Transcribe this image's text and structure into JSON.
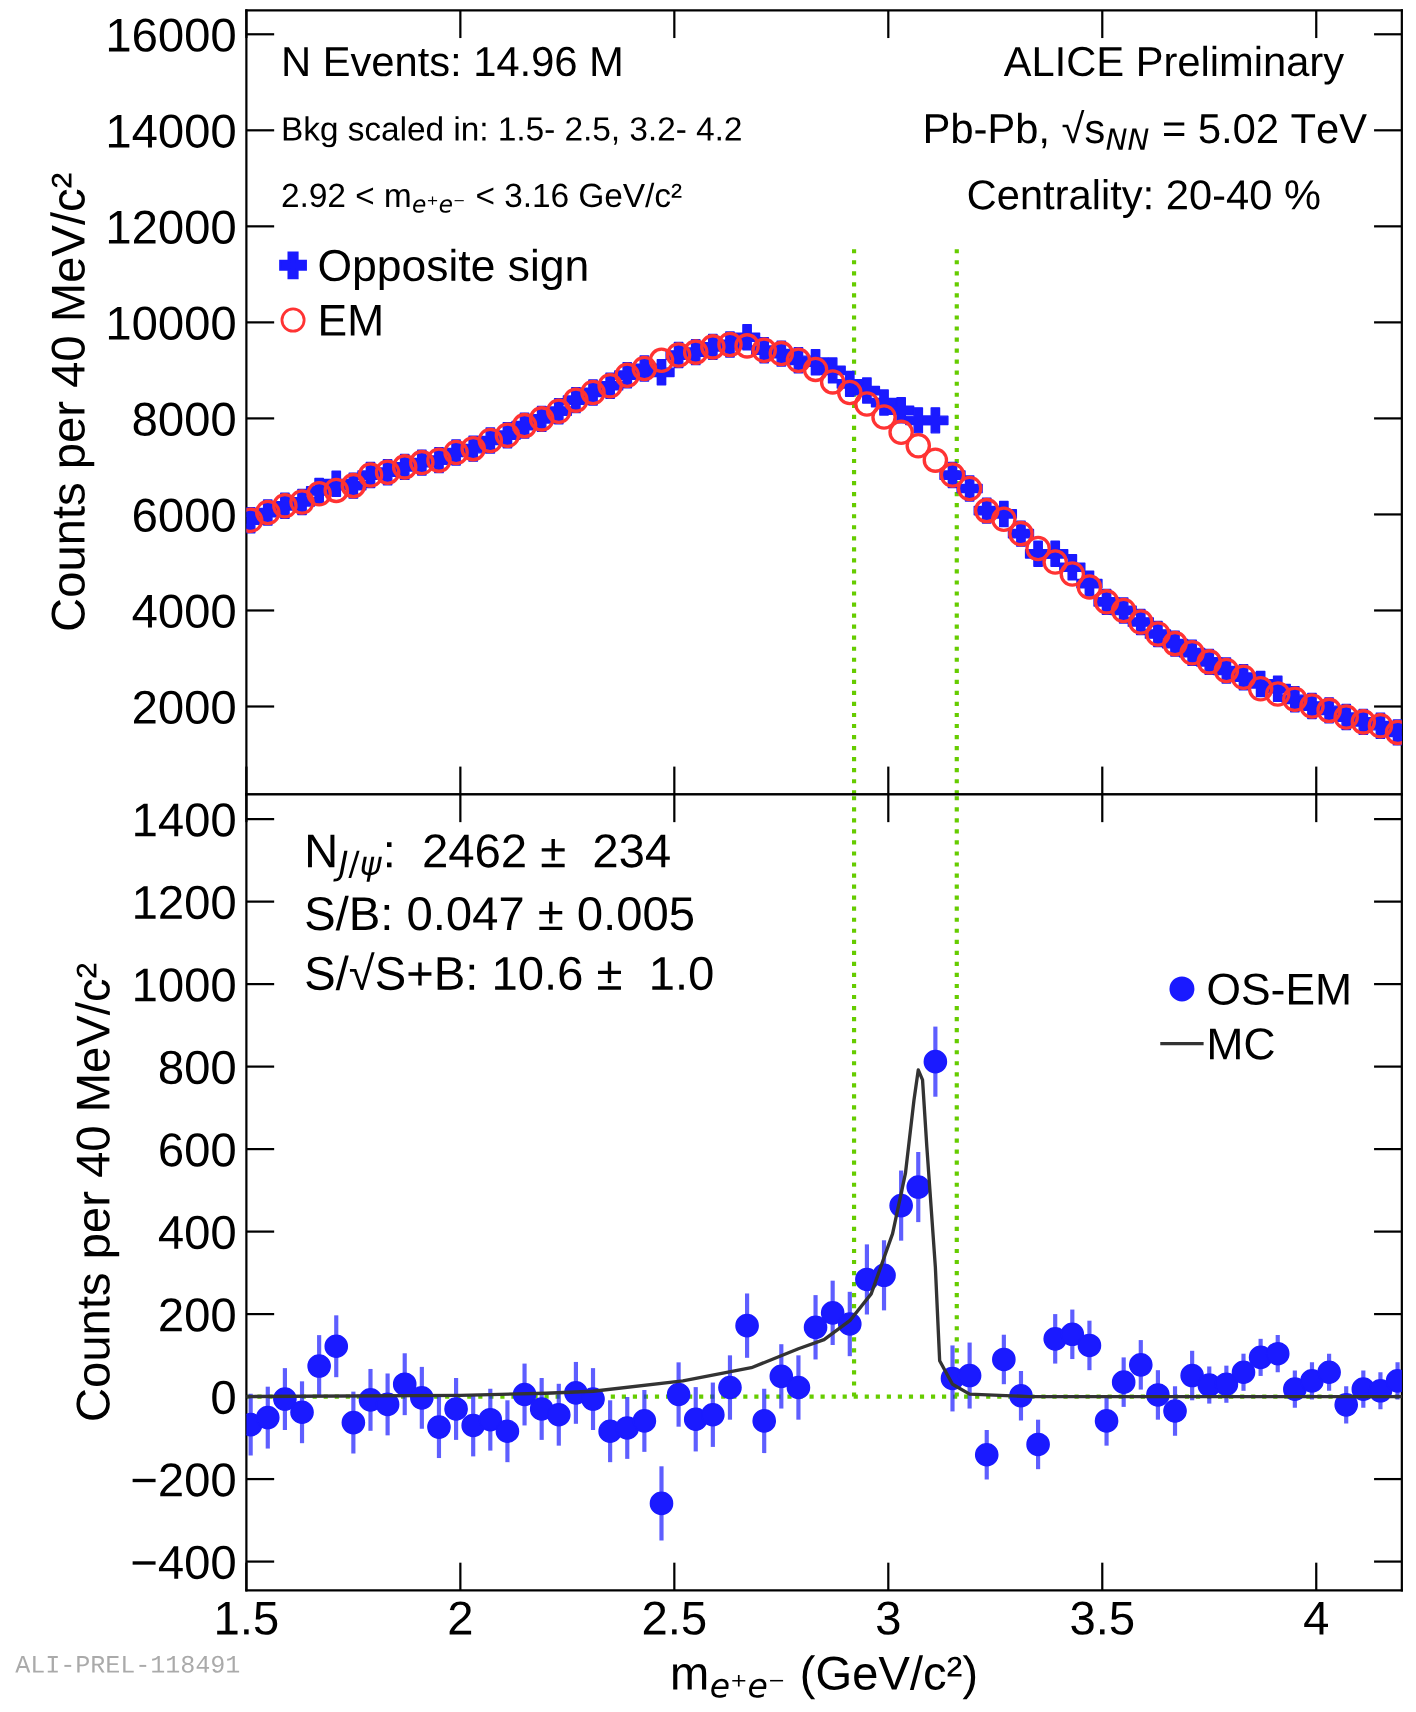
{
  "chart_data": [
    {
      "type": "scatter",
      "ylabel": "Counts per 40 MeV/c²",
      "xlim": [
        1.5,
        4.2
      ],
      "xticks": [
        1.5,
        2,
        2.5,
        3,
        3.5,
        4
      ],
      "ylim": [
        170,
        16500
      ],
      "yticks": [
        2000,
        4000,
        6000,
        8000,
        10000,
        12000,
        14000,
        16000
      ],
      "tick_labels": "y",
      "grid": false,
      "legend": "top left",
      "x": [
        1.51,
        1.55,
        1.59,
        1.63,
        1.67,
        1.71,
        1.75,
        1.79,
        1.83,
        1.87,
        1.91,
        1.95,
        1.99,
        2.03,
        2.07,
        2.11,
        2.15,
        2.19,
        2.23,
        2.27,
        2.31,
        2.35,
        2.39,
        2.43,
        2.47,
        2.51,
        2.55,
        2.59,
        2.63,
        2.67,
        2.71,
        2.75,
        2.79,
        2.83,
        2.87,
        2.91,
        2.95,
        2.99,
        3.03,
        3.07,
        3.11,
        3.15,
        3.19,
        3.23,
        3.27,
        3.31,
        3.35,
        3.39,
        3.43,
        3.47,
        3.51,
        3.55,
        3.59,
        3.63,
        3.67,
        3.71,
        3.75,
        3.79,
        3.83,
        3.87,
        3.91,
        3.95,
        3.99,
        4.03,
        4.07,
        4.11,
        4.15,
        4.19
      ],
      "series": [
        {
          "name": "Opposite sign",
          "color": "#1a1aff",
          "marker": "cross",
          "values": [
            5880,
            6040,
            6180,
            6260,
            6490,
            6640,
            6600,
            6820,
            6880,
            6990,
            7080,
            7130,
            7290,
            7370,
            7540,
            7650,
            7850,
            7990,
            8150,
            8380,
            8540,
            8680,
            8900,
            9040,
            8960,
            9320,
            9380,
            9490,
            9540,
            9690,
            9420,
            9350,
            9210,
            9170,
            9000,
            8720,
            8580,
            8330,
            8170,
            7960,
            7960,
            6820,
            6540,
            6080,
            6010,
            5600,
            5180,
            5180,
            4900,
            4560,
            4180,
            4000,
            3760,
            3510,
            3310,
            3120,
            2930,
            2750,
            2610,
            2470,
            2370,
            2150,
            2010,
            1920,
            1780,
            1680,
            1600,
            1460
          ]
        },
        {
          "name": "EM",
          "color": "#ff3333",
          "marker": "circle",
          "values": [
            5880,
            6040,
            6180,
            6260,
            6430,
            6500,
            6600,
            6820,
            6880,
            6990,
            7080,
            7130,
            7290,
            7370,
            7540,
            7650,
            7850,
            7990,
            8150,
            8380,
            8540,
            8680,
            8900,
            9040,
            9210,
            9320,
            9380,
            9490,
            9540,
            9510,
            9420,
            9350,
            9210,
            9020,
            8760,
            8540,
            8300,
            8030,
            7710,
            7430,
            7130,
            6820,
            6540,
            6080,
            5900,
            5600,
            5290,
            5010,
            4760,
            4490,
            4180,
            4000,
            3760,
            3510,
            3310,
            3120,
            2930,
            2750,
            2610,
            2370,
            2260,
            2150,
            2010,
            1920,
            1780,
            1680,
            1600,
            1460
          ]
        }
      ],
      "ref_lines": [
        {
          "axis": "x",
          "value": 2.92,
          "color": "#66cc00",
          "line_style": "dotted"
        },
        {
          "axis": "x",
          "value": 3.16,
          "color": "#66cc00",
          "line_style": "dotted"
        }
      ],
      "annotations": [
        "N Events: 14.96 M",
        "Bkg scaled in: 1.5- 2.5, 3.2- 4.2",
        "2.92 < m$_{e⁺e⁻}$ < 3.16 GeV/c²",
        "ALICE Preliminary",
        "Pb-Pb, √s$_{NN}$ = 5.02 TeV",
        "Centrality: 20-40 %"
      ]
    },
    {
      "type": "scatter",
      "ylabel": "Counts per 40 MeV/c²",
      "xlabel": "m$_{e⁺e⁻}$ (GeV/c²)",
      "xlim": [
        1.5,
        4.2
      ],
      "xticks": [
        1.5,
        2,
        2.5,
        3,
        3.5,
        4
      ],
      "ylim": [
        -470,
        1460
      ],
      "yticks": [
        {
          "value": -400,
          "label": "−400"
        },
        {
          "value": -200,
          "label": "−200"
        },
        0,
        200,
        400,
        600,
        800,
        1000,
        1200,
        1400
      ],
      "grid": false,
      "legend": "top right",
      "x": [
        1.51,
        1.55,
        1.59,
        1.63,
        1.67,
        1.71,
        1.75,
        1.79,
        1.83,
        1.87,
        1.91,
        1.95,
        1.99,
        2.03,
        2.07,
        2.11,
        2.15,
        2.19,
        2.23,
        2.27,
        2.31,
        2.35,
        2.39,
        2.43,
        2.47,
        2.51,
        2.55,
        2.59,
        2.63,
        2.67,
        2.71,
        2.75,
        2.79,
        2.83,
        2.87,
        2.91,
        2.95,
        2.99,
        3.03,
        3.07,
        3.11,
        3.15,
        3.19,
        3.23,
        3.27,
        3.31,
        3.35,
        3.39,
        3.43,
        3.47,
        3.51,
        3.55,
        3.59,
        3.63,
        3.67,
        3.71,
        3.75,
        3.79,
        3.83,
        3.87,
        3.91,
        3.95,
        3.99,
        4.03,
        4.07,
        4.11,
        4.15,
        4.19
      ],
      "series": [
        {
          "name": "OS-EM",
          "color": "#1a1aff",
          "marker": "circle",
          "values": [
            -68,
            -51,
            -6,
            -38,
            74,
            122,
            -63,
            -8,
            -19,
            30,
            -3,
            -74,
            -30,
            -70,
            -56,
            -84,
            5,
            -30,
            -44,
            9,
            -6,
            -84,
            -76,
            -59,
            -259,
            5,
            -55,
            -44,
            22,
            172,
            -59,
            49,
            22,
            168,
            203,
            176,
            284,
            294,
            463,
            508,
            812,
            44,
            51,
            -141,
            90,
            2,
            -116,
            140,
            151,
            124,
            -59,
            35,
            77,
            4,
            -35,
            51,
            28,
            30,
            59,
            95,
            104,
            18,
            38,
            59,
            -20,
            18,
            14,
            38
          ],
          "errors": [
            75,
            75,
            75,
            75,
            75,
            75,
            75,
            75,
            75,
            75,
            75,
            75,
            75,
            75,
            75,
            75,
            75,
            75,
            75,
            75,
            75,
            75,
            75,
            75,
            90,
            78,
            78,
            78,
            78,
            78,
            78,
            78,
            78,
            78,
            78,
            78,
            85,
            85,
            85,
            85,
            85,
            80,
            80,
            60,
            60,
            60,
            60,
            60,
            60,
            60,
            60,
            60,
            60,
            60,
            60,
            60,
            45,
            45,
            45,
            45,
            45,
            45,
            45,
            45,
            45,
            45,
            45,
            45
          ]
        },
        {
          "name": "MC",
          "type": "line",
          "color": "#333333",
          "marker": "none",
          "line_style": "solid",
          "x": [
            1.5,
            2.0,
            2.2,
            2.31,
            2.52,
            2.68,
            2.79,
            2.85,
            2.91,
            2.96,
            3.01,
            3.04,
            3.06,
            3.07,
            3.08,
            3.09,
            3.11,
            3.12,
            3.15,
            3.19,
            3.33,
            4.2
          ],
          "values": [
            0,
            3,
            8,
            13,
            38,
            70,
            116,
            138,
            184,
            249,
            395,
            541,
            719,
            792,
            768,
            606,
            313,
            87,
            30,
            6,
            0,
            0
          ]
        }
      ],
      "ref_lines": [
        {
          "axis": "y",
          "value": 0,
          "color": "#66cc00",
          "line_style": "dotted"
        },
        {
          "axis": "x",
          "value": 2.92,
          "color": "#66cc00",
          "line_style": "dotted"
        },
        {
          "axis": "x",
          "value": 3.16,
          "color": "#66cc00",
          "line_style": "dotted"
        }
      ],
      "annotations": [
        "N$_{J/ψ}$:  2462 ±  234",
        "S/B: 0.047 ± 0.005",
        "S/√S+B: 10.6 ±  1.0",
        "ALI-PREL-118491"
      ]
    }
  ]
}
